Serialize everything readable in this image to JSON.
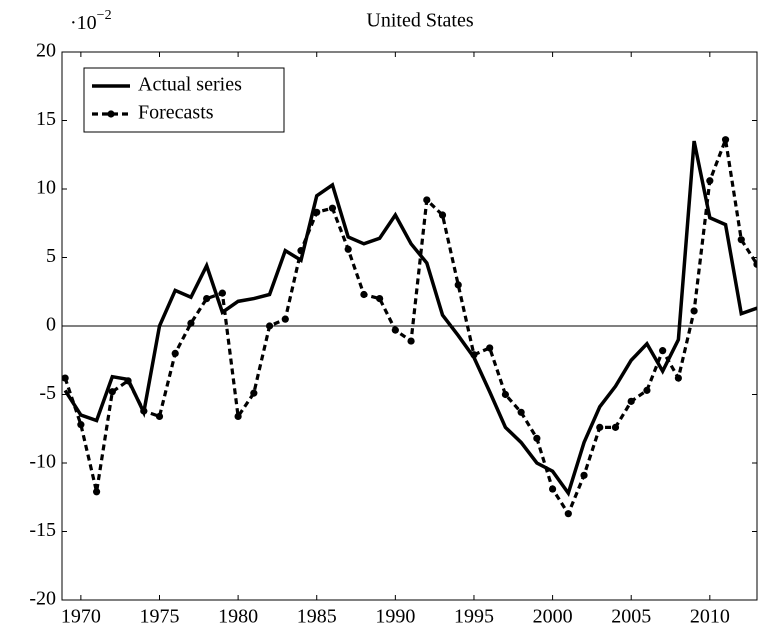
{
  "chart_data": {
    "type": "line",
    "title": "United States",
    "multiplier": {
      "base": "·10",
      "exponent": "−2"
    },
    "x": [
      1969,
      1970,
      1971,
      1972,
      1973,
      1974,
      1975,
      1976,
      1977,
      1978,
      1979,
      1980,
      1981,
      1982,
      1983,
      1984,
      1985,
      1986,
      1987,
      1988,
      1989,
      1990,
      1991,
      1992,
      1993,
      1994,
      1995,
      1996,
      1997,
      1998,
      1999,
      2000,
      2001,
      2002,
      2003,
      2004,
      2005,
      2006,
      2007,
      2008,
      2009,
      2010,
      2011,
      2012,
      2013
    ],
    "series": [
      {
        "name": "Actual series",
        "color": "#000000",
        "style": "solid",
        "values": [
          -4.7,
          -6.5,
          -6.9,
          -3.7,
          -3.9,
          -6.3,
          0,
          2.6,
          2.1,
          4.4,
          1.0,
          1.8,
          2.0,
          2.3,
          5.5,
          4.8,
          9.5,
          10.3,
          6.5,
          6.0,
          6.4,
          8.1,
          6.0,
          4.6,
          0.8,
          -0.7,
          -2.3,
          -4.8,
          -7.4,
          -8.5,
          -10.0,
          -10.6,
          -12.2,
          -8.5,
          -5.9,
          -4.4,
          -2.5,
          -1.3,
          -3.3,
          -1.0,
          13.5,
          7.9,
          7.4,
          0.9,
          1.3
        ]
      },
      {
        "name": "Forecasts",
        "color": "#000000",
        "style": "dashed-markers",
        "values": [
          -3.8,
          -7.2,
          -12.1,
          -4.8,
          -4.0,
          -6.2,
          -6.6,
          -2.0,
          0.2,
          2.0,
          2.4,
          -6.6,
          -4.9,
          0.0,
          0.5,
          5.5,
          8.3,
          8.6,
          5.6,
          2.3,
          2.0,
          -0.3,
          -1.1,
          9.2,
          8.1,
          3.0,
          -2.1,
          -1.6,
          -5.0,
          -6.3,
          -8.2,
          -11.9,
          -13.7,
          -10.9,
          -7.4,
          -7.4,
          -5.5,
          -4.7,
          -1.8,
          -3.8,
          1.1,
          10.6,
          13.6,
          6.3,
          4.5
        ]
      }
    ],
    "xlim": [
      1968.8,
      2013
    ],
    "xticks": [
      1970,
      1975,
      1980,
      1985,
      1990,
      1995,
      2000,
      2005,
      2010
    ],
    "ylim": [
      -20,
      20
    ],
    "yticks": [
      -20,
      -15,
      -10,
      -5,
      0,
      5,
      10,
      15,
      20
    ],
    "zero_line": true,
    "legend": "upper left"
  }
}
